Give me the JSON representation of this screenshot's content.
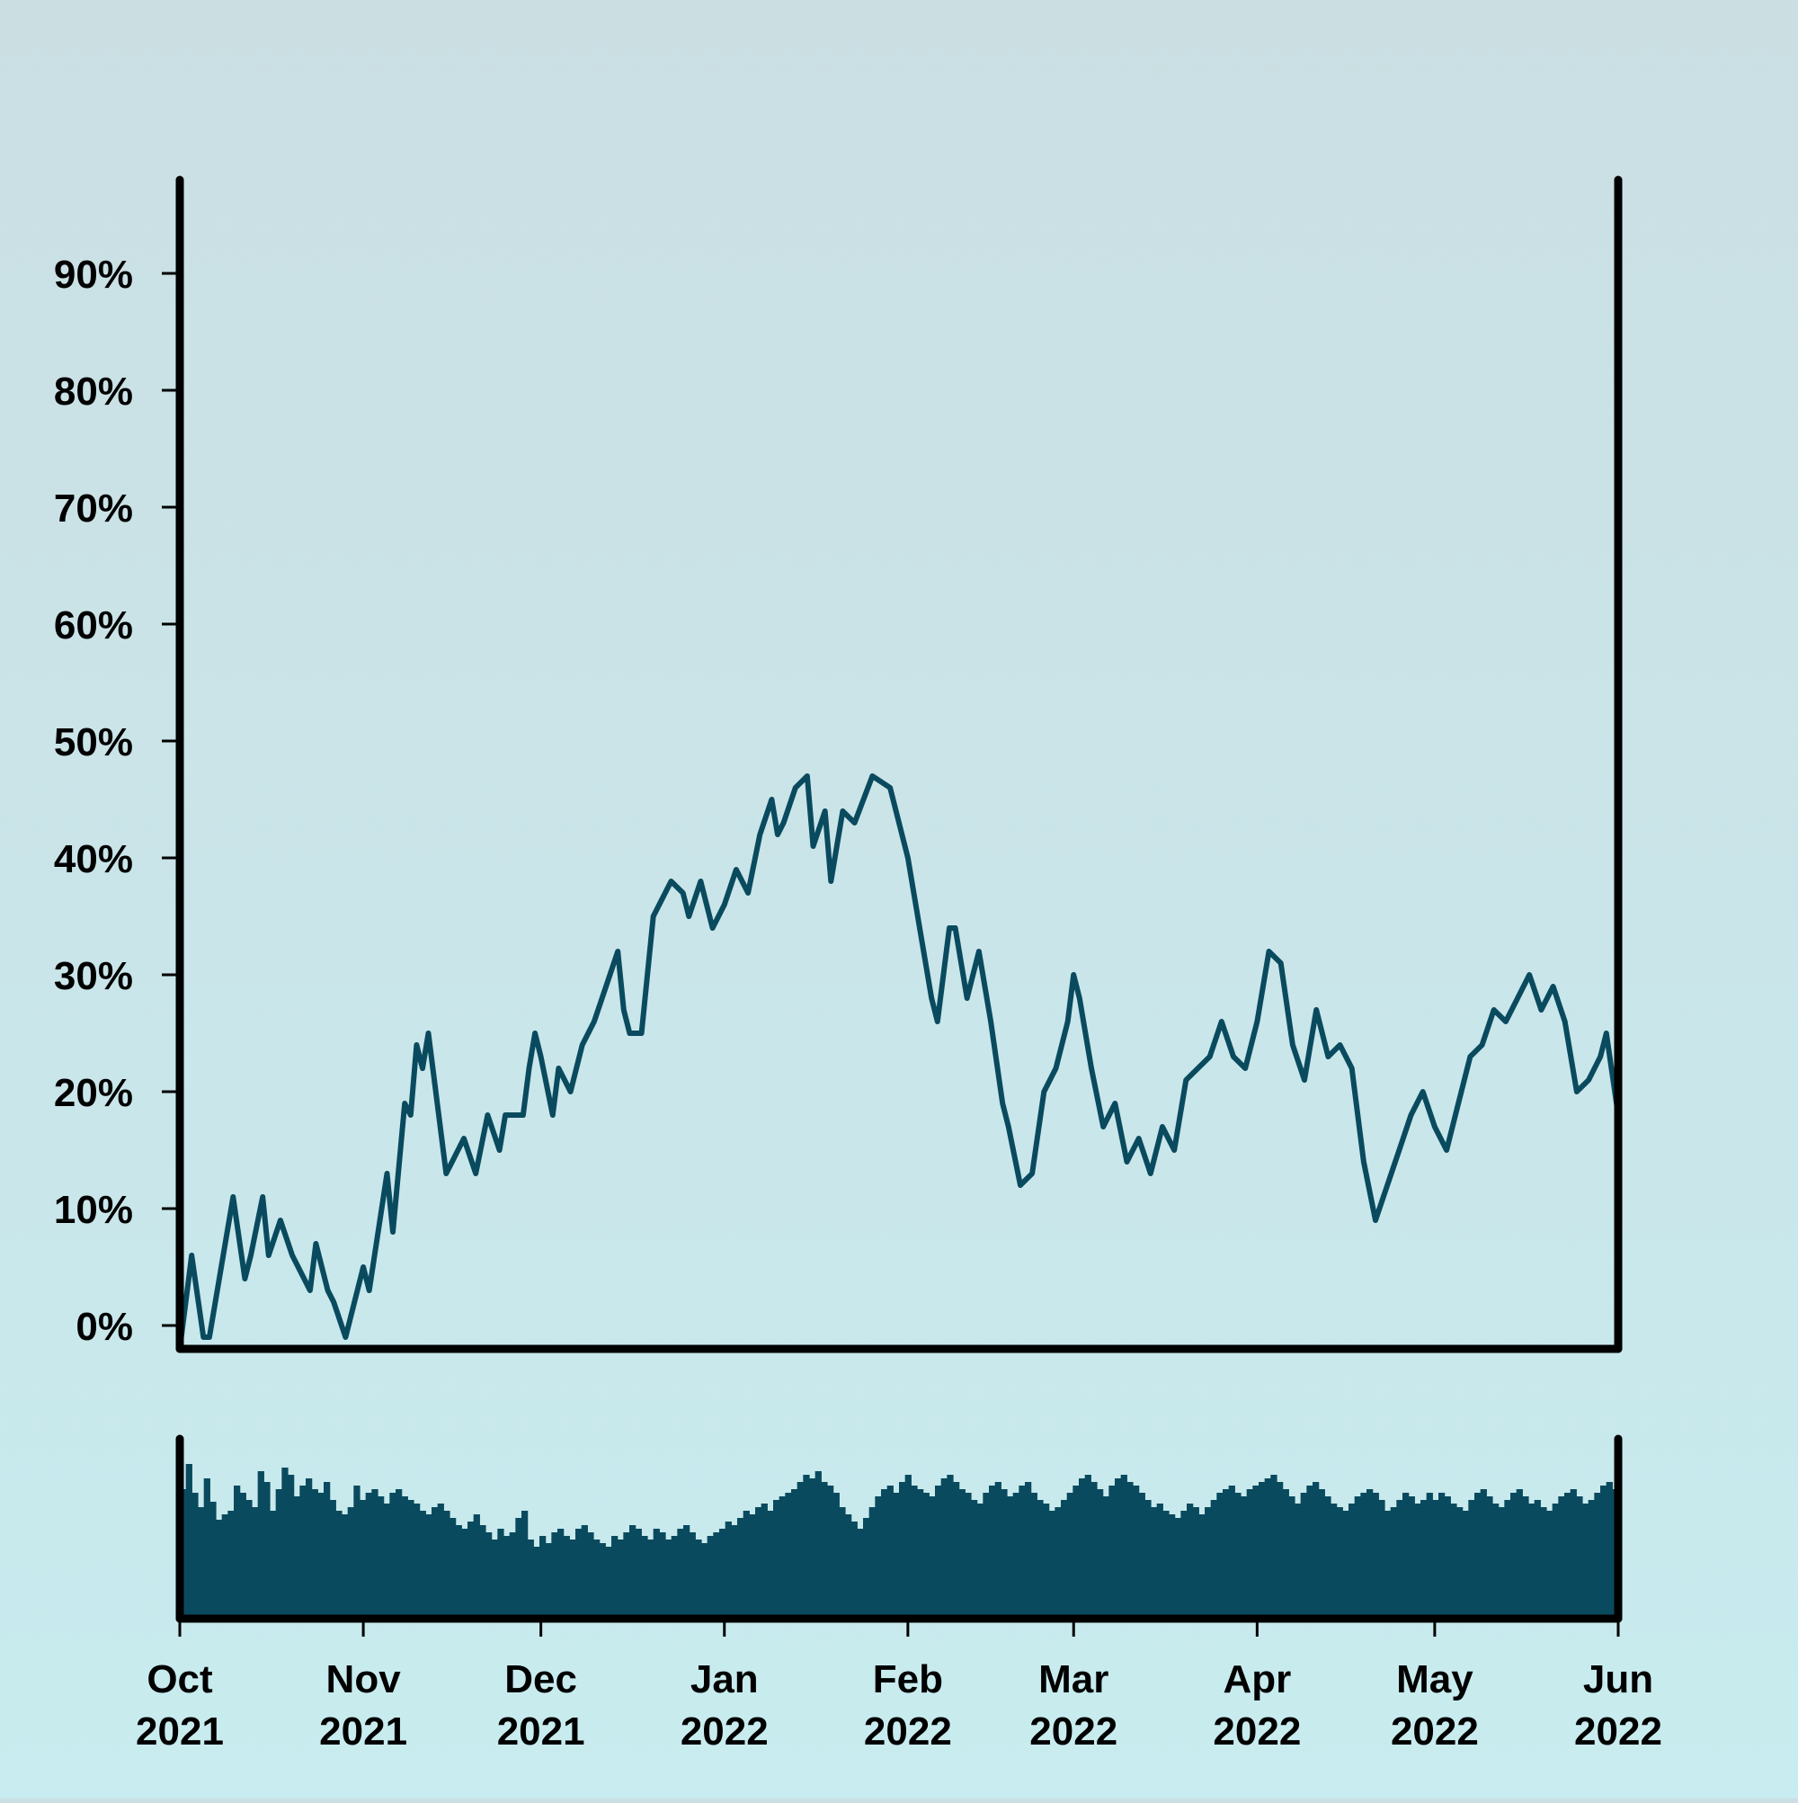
{
  "chart_data": {
    "type": "line",
    "title": "",
    "xlabel": "",
    "ylabel": "",
    "series_color": "#0a4a5e",
    "axis_color": "#000000",
    "background_top": "#cbdfe3",
    "background_bottom": "#c8ecef",
    "grid": false,
    "legend": "none",
    "x_start": "2021-10-01",
    "x_end": "2022-06-01",
    "xlim": [
      "2021-10-01",
      "2022-06-01"
    ],
    "ylim": [
      -2,
      98
    ],
    "y_ticks": [
      0,
      10,
      20,
      30,
      40,
      50,
      60,
      70,
      80,
      90
    ],
    "y_tick_labels": [
      "0%",
      "10%",
      "20%",
      "30%",
      "40%",
      "50%",
      "60%",
      "70%",
      "80%",
      "90%"
    ],
    "x_ticks": [
      "2021-10-01",
      "2021-11-01",
      "2021-12-01",
      "2022-01-01",
      "2022-02-01",
      "2022-03-01",
      "2022-04-01",
      "2022-05-01",
      "2022-06-01"
    ],
    "x_tick_labels": [
      [
        "Oct",
        "2021"
      ],
      [
        "Nov",
        "2021"
      ],
      [
        "Dec",
        "2021"
      ],
      [
        "Jan",
        "2022"
      ],
      [
        "Feb",
        "2022"
      ],
      [
        "Mar",
        "2022"
      ],
      [
        "Apr",
        "2022"
      ],
      [
        "May",
        "2022"
      ],
      [
        "Jun",
        "2022"
      ]
    ],
    "series": [
      {
        "values": [
          [
            "2021-10-01",
            -2
          ],
          [
            "2021-10-03",
            6
          ],
          [
            "2021-10-05",
            -1
          ],
          [
            "2021-10-06",
            -1
          ],
          [
            "2021-10-08",
            5
          ],
          [
            "2021-10-10",
            11
          ],
          [
            "2021-10-12",
            4
          ],
          [
            "2021-10-13",
            6
          ],
          [
            "2021-10-15",
            11
          ],
          [
            "2021-10-16",
            6
          ],
          [
            "2021-10-18",
            9
          ],
          [
            "2021-10-20",
            6
          ],
          [
            "2021-10-22",
            4
          ],
          [
            "2021-10-23",
            3
          ],
          [
            "2021-10-24",
            7
          ],
          [
            "2021-10-26",
            3
          ],
          [
            "2021-10-27",
            2
          ],
          [
            "2021-10-29",
            -1
          ],
          [
            "2021-11-01",
            5
          ],
          [
            "2021-11-02",
            3
          ],
          [
            "2021-11-05",
            13
          ],
          [
            "2021-11-06",
            8
          ],
          [
            "2021-11-08",
            19
          ],
          [
            "2021-11-09",
            18
          ],
          [
            "2021-11-10",
            24
          ],
          [
            "2021-11-11",
            22
          ],
          [
            "2021-11-12",
            25
          ],
          [
            "2021-11-15",
            13
          ],
          [
            "2021-11-16",
            14
          ],
          [
            "2021-11-18",
            16
          ],
          [
            "2021-11-20",
            13
          ],
          [
            "2021-11-22",
            18
          ],
          [
            "2021-11-24",
            15
          ],
          [
            "2021-11-25",
            18
          ],
          [
            "2021-11-28",
            18
          ],
          [
            "2021-11-29",
            22
          ],
          [
            "2021-11-30",
            25
          ],
          [
            "2021-12-01",
            23
          ],
          [
            "2021-12-03",
            18
          ],
          [
            "2021-12-04",
            22
          ],
          [
            "2021-12-05",
            21
          ],
          [
            "2021-12-06",
            20
          ],
          [
            "2021-12-08",
            24
          ],
          [
            "2021-12-10",
            26
          ],
          [
            "2021-12-12",
            29
          ],
          [
            "2021-12-14",
            32
          ],
          [
            "2021-12-15",
            27
          ],
          [
            "2021-12-16",
            25
          ],
          [
            "2021-12-18",
            25
          ],
          [
            "2021-12-20",
            35
          ],
          [
            "2021-12-21",
            36
          ],
          [
            "2021-12-23",
            38
          ],
          [
            "2021-12-25",
            37
          ],
          [
            "2021-12-26",
            35
          ],
          [
            "2021-12-28",
            38
          ],
          [
            "2021-12-30",
            34
          ],
          [
            "2022-01-01",
            36
          ],
          [
            "2022-01-03",
            39
          ],
          [
            "2022-01-05",
            37
          ],
          [
            "2022-01-07",
            42
          ],
          [
            "2022-01-09",
            45
          ],
          [
            "2022-01-10",
            42
          ],
          [
            "2022-01-11",
            43
          ],
          [
            "2022-01-13",
            46
          ],
          [
            "2022-01-15",
            47
          ],
          [
            "2022-01-16",
            41
          ],
          [
            "2022-01-18",
            44
          ],
          [
            "2022-01-19",
            38
          ],
          [
            "2022-01-21",
            44
          ],
          [
            "2022-01-23",
            43
          ],
          [
            "2022-01-26",
            47
          ],
          [
            "2022-01-29",
            46
          ],
          [
            "2022-02-01",
            40
          ],
          [
            "2022-02-03",
            34
          ],
          [
            "2022-02-05",
            28
          ],
          [
            "2022-02-06",
            26
          ],
          [
            "2022-02-08",
            34
          ],
          [
            "2022-02-09",
            34
          ],
          [
            "2022-02-11",
            28
          ],
          [
            "2022-02-13",
            32
          ],
          [
            "2022-02-15",
            26
          ],
          [
            "2022-02-17",
            19
          ],
          [
            "2022-02-18",
            17
          ],
          [
            "2022-02-20",
            12
          ],
          [
            "2022-02-22",
            13
          ],
          [
            "2022-02-24",
            20
          ],
          [
            "2022-02-26",
            22
          ],
          [
            "2022-02-28",
            26
          ],
          [
            "2022-03-01",
            30
          ],
          [
            "2022-03-02",
            28
          ],
          [
            "2022-03-04",
            22
          ],
          [
            "2022-03-06",
            17
          ],
          [
            "2022-03-08",
            19
          ],
          [
            "2022-03-10",
            14
          ],
          [
            "2022-03-12",
            16
          ],
          [
            "2022-03-14",
            13
          ],
          [
            "2022-03-16",
            17
          ],
          [
            "2022-03-18",
            15
          ],
          [
            "2022-03-20",
            21
          ],
          [
            "2022-03-22",
            22
          ],
          [
            "2022-03-24",
            23
          ],
          [
            "2022-03-26",
            26
          ],
          [
            "2022-03-28",
            23
          ],
          [
            "2022-03-30",
            22
          ],
          [
            "2022-04-01",
            26
          ],
          [
            "2022-04-03",
            32
          ],
          [
            "2022-04-05",
            31
          ],
          [
            "2022-04-07",
            24
          ],
          [
            "2022-04-09",
            21
          ],
          [
            "2022-04-11",
            27
          ],
          [
            "2022-04-13",
            23
          ],
          [
            "2022-04-15",
            24
          ],
          [
            "2022-04-17",
            22
          ],
          [
            "2022-04-19",
            14
          ],
          [
            "2022-04-21",
            9
          ],
          [
            "2022-04-23",
            12
          ],
          [
            "2022-04-25",
            15
          ],
          [
            "2022-04-27",
            18
          ],
          [
            "2022-04-29",
            20
          ],
          [
            "2022-05-01",
            17
          ],
          [
            "2022-05-03",
            15
          ],
          [
            "2022-05-05",
            19
          ],
          [
            "2022-05-07",
            23
          ],
          [
            "2022-05-09",
            24
          ],
          [
            "2022-05-11",
            27
          ],
          [
            "2022-05-13",
            26
          ],
          [
            "2022-05-15",
            28
          ],
          [
            "2022-05-17",
            30
          ],
          [
            "2022-05-19",
            27
          ],
          [
            "2022-05-21",
            29
          ],
          [
            "2022-05-23",
            26
          ],
          [
            "2022-05-25",
            20
          ],
          [
            "2022-05-27",
            21
          ],
          [
            "2022-05-29",
            23
          ],
          [
            "2022-05-30",
            25
          ],
          [
            "2022-06-01",
            18
          ]
        ]
      }
    ],
    "overview": {
      "type": "bar",
      "values_note": "",
      "x_start": "2021-10-01",
      "x_end": "2022-06-01",
      "values": [
        [
          0.72,
          0.86,
          0.7,
          0.62,
          0.78,
          0.65,
          0.55,
          0.58,
          0.6,
          0.74,
          0.7,
          0.66,
          0.62,
          0.82,
          0.76,
          0.6,
          0.72,
          0.84,
          0.8,
          0.68,
          0.74,
          0.78,
          0.72,
          0.7,
          0.76,
          0.66,
          0.6,
          0.58
        ],
        [
          0.62,
          0.74,
          0.66,
          0.7,
          0.72,
          0.68,
          0.64,
          0.7,
          0.72,
          0.68,
          0.66,
          0.64,
          0.6,
          0.58,
          0.62,
          0.64,
          0.6,
          0.56,
          0.52,
          0.5,
          0.54,
          0.58,
          0.52,
          0.48,
          0.44,
          0.5,
          0.46,
          0.48,
          0.56,
          0.6
        ],
        [
          0.44,
          0.4,
          0.46,
          0.42,
          0.48,
          0.5,
          0.46,
          0.44,
          0.5,
          0.52,
          0.48,
          0.44,
          0.42,
          0.4,
          0.46,
          0.44,
          0.48,
          0.52,
          0.5,
          0.46,
          0.44,
          0.5,
          0.48,
          0.44,
          0.46,
          0.5,
          0.52,
          0.48,
          0.44,
          0.42,
          0.46
        ],
        [
          0.48,
          0.5,
          0.54,
          0.52,
          0.56,
          0.6,
          0.58,
          0.62,
          0.64,
          0.6,
          0.66,
          0.68,
          0.7,
          0.72,
          0.76,
          0.8,
          0.78,
          0.82,
          0.76,
          0.74,
          0.7,
          0.62,
          0.58,
          0.54,
          0.5,
          0.56,
          0.62,
          0.68,
          0.72,
          0.74,
          0.7
        ],
        [
          0.76,
          0.8,
          0.74,
          0.72,
          0.7,
          0.68,
          0.74,
          0.78,
          0.8,
          0.76,
          0.72,
          0.7,
          0.66,
          0.64,
          0.7,
          0.74,
          0.76,
          0.72,
          0.68,
          0.7,
          0.74,
          0.76,
          0.7,
          0.66,
          0.64,
          0.6,
          0.62,
          0.66
        ],
        [
          0.7,
          0.74,
          0.78,
          0.8,
          0.76,
          0.72,
          0.68,
          0.74,
          0.78,
          0.8,
          0.76,
          0.74,
          0.7,
          0.66,
          0.62,
          0.64,
          0.6,
          0.58,
          0.56,
          0.6,
          0.64,
          0.62,
          0.58,
          0.62,
          0.66,
          0.7,
          0.72,
          0.74,
          0.7,
          0.68,
          0.72
        ],
        [
          0.74,
          0.76,
          0.78,
          0.8,
          0.76,
          0.72,
          0.68,
          0.64,
          0.7,
          0.74,
          0.76,
          0.72,
          0.68,
          0.64,
          0.62,
          0.6,
          0.64,
          0.68,
          0.7,
          0.72,
          0.7,
          0.66,
          0.6,
          0.62,
          0.66,
          0.7,
          0.68,
          0.64,
          0.66,
          0.7
        ],
        [
          0.66,
          0.7,
          0.68,
          0.64,
          0.62,
          0.6,
          0.66,
          0.7,
          0.72,
          0.68,
          0.64,
          0.62,
          0.66,
          0.7,
          0.72,
          0.68,
          0.64,
          0.66,
          0.62,
          0.6,
          0.64,
          0.68,
          0.7,
          0.72,
          0.68,
          0.64,
          0.66,
          0.7,
          0.74,
          0.76,
          0.72
        ]
      ]
    }
  }
}
